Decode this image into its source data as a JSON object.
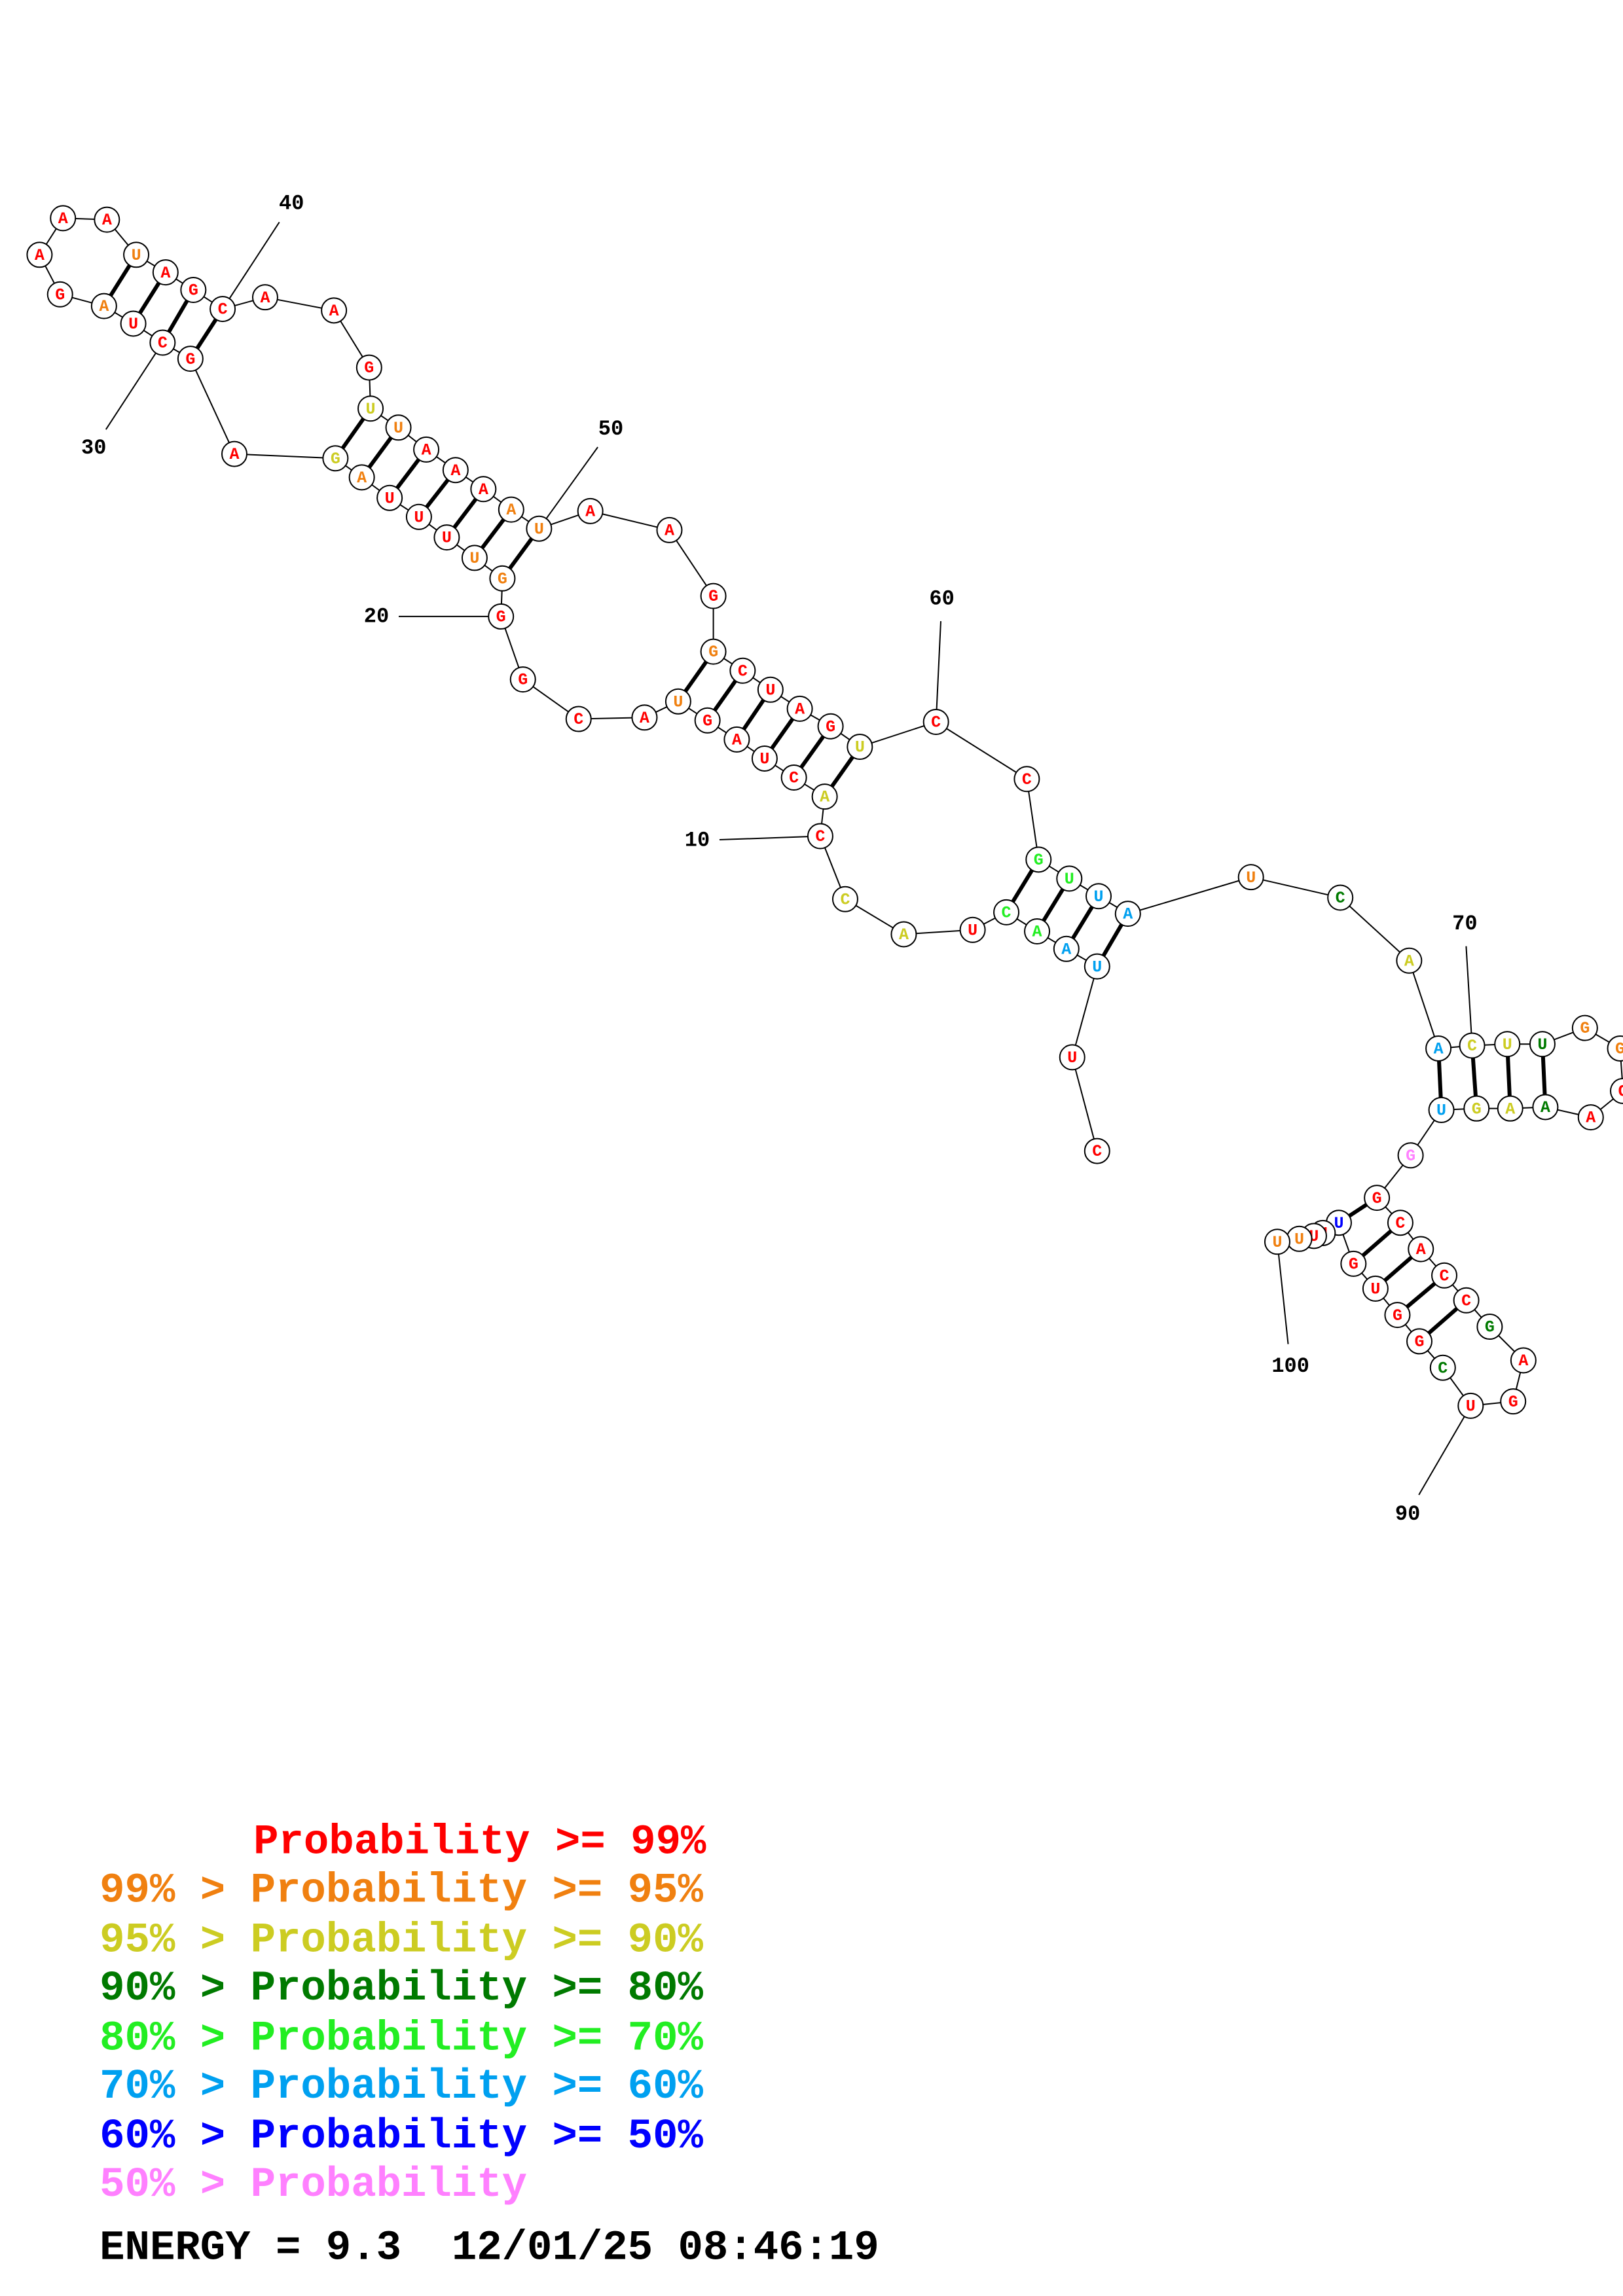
{
  "nodes": [
    {
      "base": "C",
      "color": "#ff0000"
    },
    {
      "base": "U",
      "color": "#ff0000"
    },
    {
      "base": "U",
      "color": "#00a0f0"
    },
    {
      "base": "A",
      "color": "#00a0f0"
    },
    {
      "base": "A",
      "color": "#22ee22"
    },
    {
      "base": "C",
      "color": "#22ee22"
    },
    {
      "base": "U",
      "color": "#ff0000"
    },
    {
      "base": "A",
      "color": "#cccc22"
    },
    {
      "base": "C",
      "color": "#cccc22"
    },
    {
      "base": "C",
      "color": "#ff0000"
    },
    {
      "base": "A",
      "color": "#cccc22"
    },
    {
      "base": "C",
      "color": "#ff0000"
    },
    {
      "base": "U",
      "color": "#ff0000"
    },
    {
      "base": "A",
      "color": "#ff0000"
    },
    {
      "base": "G",
      "color": "#ff0000"
    },
    {
      "base": "U",
      "color": "#f08010"
    },
    {
      "base": "A",
      "color": "#ff0000"
    },
    {
      "base": "C",
      "color": "#ff0000"
    },
    {
      "base": "G",
      "color": "#ff0000"
    },
    {
      "base": "G",
      "color": "#ff0000"
    },
    {
      "base": "G",
      "color": "#f08010"
    },
    {
      "base": "U",
      "color": "#f08010"
    },
    {
      "base": "U",
      "color": "#ff0000"
    },
    {
      "base": "U",
      "color": "#ff0000"
    },
    {
      "base": "U",
      "color": "#ff0000"
    },
    {
      "base": "A",
      "color": "#f08010"
    },
    {
      "base": "G",
      "color": "#cccc22"
    },
    {
      "base": "A",
      "color": "#ff0000"
    },
    {
      "base": "G",
      "color": "#ff0000"
    },
    {
      "base": "C",
      "color": "#ff0000"
    },
    {
      "base": "U",
      "color": "#ff0000"
    },
    {
      "base": "A",
      "color": "#f08010"
    },
    {
      "base": "G",
      "color": "#ff0000"
    },
    {
      "base": "A",
      "color": "#ff0000"
    },
    {
      "base": "A",
      "color": "#ff0000"
    },
    {
      "base": "A",
      "color": "#ff0000"
    },
    {
      "base": "U",
      "color": "#f08010"
    },
    {
      "base": "A",
      "color": "#ff0000"
    },
    {
      "base": "G",
      "color": "#ff0000"
    },
    {
      "base": "C",
      "color": "#ff0000"
    },
    {
      "base": "A",
      "color": "#ff0000"
    },
    {
      "base": "A",
      "color": "#ff0000"
    },
    {
      "base": "G",
      "color": "#ff0000"
    },
    {
      "base": "U",
      "color": "#cccc22"
    },
    {
      "base": "U",
      "color": "#f08010"
    },
    {
      "base": "A",
      "color": "#ff0000"
    },
    {
      "base": "A",
      "color": "#ff0000"
    },
    {
      "base": "A",
      "color": "#ff0000"
    },
    {
      "base": "A",
      "color": "#f08010"
    },
    {
      "base": "U",
      "color": "#f08010"
    },
    {
      "base": "A",
      "color": "#ff0000"
    },
    {
      "base": "A",
      "color": "#ff0000"
    },
    {
      "base": "G",
      "color": "#ff0000"
    },
    {
      "base": "G",
      "color": "#f08010"
    },
    {
      "base": "C",
      "color": "#ff0000"
    },
    {
      "base": "U",
      "color": "#ff0000"
    },
    {
      "base": "A",
      "color": "#ff0000"
    },
    {
      "base": "G",
      "color": "#ff0000"
    },
    {
      "base": "U",
      "color": "#cccc22"
    },
    {
      "base": "C",
      "color": "#ff0000"
    },
    {
      "base": "C",
      "color": "#ff0000"
    },
    {
      "base": "G",
      "color": "#22ee22"
    },
    {
      "base": "U",
      "color": "#22ee22"
    },
    {
      "base": "U",
      "color": "#00a0f0"
    },
    {
      "base": "A",
      "color": "#00a0f0"
    },
    {
      "base": "U",
      "color": "#f08010"
    },
    {
      "base": "C",
      "color": "#007a00"
    },
    {
      "base": "A",
      "color": "#cccc22"
    },
    {
      "base": "A",
      "color": "#00a0f0"
    },
    {
      "base": "C",
      "color": "#cccc22"
    },
    {
      "base": "U",
      "color": "#cccc22"
    },
    {
      "base": "U",
      "color": "#007a00"
    },
    {
      "base": "G",
      "color": "#f08010"
    },
    {
      "base": "G",
      "color": "#f08010"
    },
    {
      "base": "C",
      "color": "#ff0000"
    },
    {
      "base": "A",
      "color": "#ff0000"
    },
    {
      "base": "A",
      "color": "#007a00"
    },
    {
      "base": "A",
      "color": "#cccc22"
    },
    {
      "base": "G",
      "color": "#cccc22"
    },
    {
      "base": "U",
      "color": "#00a0f0"
    },
    {
      "base": "G",
      "color": "#ff80ff"
    },
    {
      "base": "G",
      "color": "#ff0000"
    },
    {
      "base": "C",
      "color": "#ff0000"
    },
    {
      "base": "A",
      "color": "#ff0000"
    },
    {
      "base": "C",
      "color": "#ff0000"
    },
    {
      "base": "C",
      "color": "#ff0000"
    },
    {
      "base": "G",
      "color": "#007a00"
    },
    {
      "base": "A",
      "color": "#ff0000"
    },
    {
      "base": "G",
      "color": "#ff0000"
    },
    {
      "base": "U",
      "color": "#ff0000"
    },
    {
      "base": "C",
      "color": "#007a00"
    },
    {
      "base": "G",
      "color": "#ff0000"
    },
    {
      "base": "G",
      "color": "#ff0000"
    },
    {
      "base": "U",
      "color": "#ff0000"
    },
    {
      "base": "G",
      "color": "#ff0000"
    },
    {
      "base": "U",
      "color": "#0000ff"
    },
    {
      "base": "U",
      "color": "#ff0000"
    },
    {
      "base": "U",
      "color": "#ff0000"
    },
    {
      "base": "U",
      "color": "#f08010"
    },
    {
      "base": "U",
      "color": "#f08010"
    }
  ],
  "number_labels": [
    "10",
    "20",
    "30",
    "40",
    "50",
    "60",
    "70",
    "90",
    "100"
  ],
  "legend": [
    {
      "text": "Probability >= 99%",
      "color": "#ff0000"
    },
    {
      "text": "99% > Probability >= 95%",
      "color": "#f08010"
    },
    {
      "text": "95% > Probability >= 90%",
      "color": "#cccc22"
    },
    {
      "text": "90% > Probability >= 80%",
      "color": "#007a00"
    },
    {
      "text": "80% > Probability >= 70%",
      "color": "#22ee22"
    },
    {
      "text": "70% > Probability >= 60%",
      "color": "#00a0f0"
    },
    {
      "text": "60% > Probability >= 50%",
      "color": "#0000ff"
    },
    {
      "text": "50% > Probability",
      "color": "#ff80ff"
    }
  ],
  "energy": "ENERGY = 9.3  12/01/25 08:46:19"
}
